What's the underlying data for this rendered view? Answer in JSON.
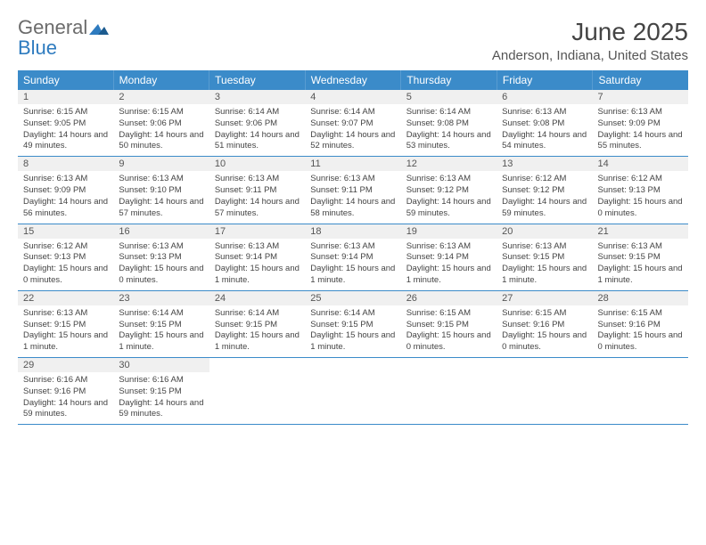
{
  "brand": {
    "part1": "General",
    "part2": "Blue"
  },
  "title": "June 2025",
  "location": "Anderson, Indiana, United States",
  "colors": {
    "header_bg": "#3b8bc9",
    "header_text": "#ffffff",
    "daynum_bg": "#f0f0f0",
    "border": "#3b8bc9",
    "body_text": "#444444",
    "logo_grey": "#6b6b6b",
    "logo_blue": "#2e7bbf"
  },
  "day_names": [
    "Sunday",
    "Monday",
    "Tuesday",
    "Wednesday",
    "Thursday",
    "Friday",
    "Saturday"
  ],
  "weeks": [
    [
      {
        "n": "1",
        "sr": "6:15 AM",
        "ss": "9:05 PM",
        "dl": "14 hours and 49 minutes."
      },
      {
        "n": "2",
        "sr": "6:15 AM",
        "ss": "9:06 PM",
        "dl": "14 hours and 50 minutes."
      },
      {
        "n": "3",
        "sr": "6:14 AM",
        "ss": "9:06 PM",
        "dl": "14 hours and 51 minutes."
      },
      {
        "n": "4",
        "sr": "6:14 AM",
        "ss": "9:07 PM",
        "dl": "14 hours and 52 minutes."
      },
      {
        "n": "5",
        "sr": "6:14 AM",
        "ss": "9:08 PM",
        "dl": "14 hours and 53 minutes."
      },
      {
        "n": "6",
        "sr": "6:13 AM",
        "ss": "9:08 PM",
        "dl": "14 hours and 54 minutes."
      },
      {
        "n": "7",
        "sr": "6:13 AM",
        "ss": "9:09 PM",
        "dl": "14 hours and 55 minutes."
      }
    ],
    [
      {
        "n": "8",
        "sr": "6:13 AM",
        "ss": "9:09 PM",
        "dl": "14 hours and 56 minutes."
      },
      {
        "n": "9",
        "sr": "6:13 AM",
        "ss": "9:10 PM",
        "dl": "14 hours and 57 minutes."
      },
      {
        "n": "10",
        "sr": "6:13 AM",
        "ss": "9:11 PM",
        "dl": "14 hours and 57 minutes."
      },
      {
        "n": "11",
        "sr": "6:13 AM",
        "ss": "9:11 PM",
        "dl": "14 hours and 58 minutes."
      },
      {
        "n": "12",
        "sr": "6:13 AM",
        "ss": "9:12 PM",
        "dl": "14 hours and 59 minutes."
      },
      {
        "n": "13",
        "sr": "6:12 AM",
        "ss": "9:12 PM",
        "dl": "14 hours and 59 minutes."
      },
      {
        "n": "14",
        "sr": "6:12 AM",
        "ss": "9:13 PM",
        "dl": "15 hours and 0 minutes."
      }
    ],
    [
      {
        "n": "15",
        "sr": "6:12 AM",
        "ss": "9:13 PM",
        "dl": "15 hours and 0 minutes."
      },
      {
        "n": "16",
        "sr": "6:13 AM",
        "ss": "9:13 PM",
        "dl": "15 hours and 0 minutes."
      },
      {
        "n": "17",
        "sr": "6:13 AM",
        "ss": "9:14 PM",
        "dl": "15 hours and 1 minute."
      },
      {
        "n": "18",
        "sr": "6:13 AM",
        "ss": "9:14 PM",
        "dl": "15 hours and 1 minute."
      },
      {
        "n": "19",
        "sr": "6:13 AM",
        "ss": "9:14 PM",
        "dl": "15 hours and 1 minute."
      },
      {
        "n": "20",
        "sr": "6:13 AM",
        "ss": "9:15 PM",
        "dl": "15 hours and 1 minute."
      },
      {
        "n": "21",
        "sr": "6:13 AM",
        "ss": "9:15 PM",
        "dl": "15 hours and 1 minute."
      }
    ],
    [
      {
        "n": "22",
        "sr": "6:13 AM",
        "ss": "9:15 PM",
        "dl": "15 hours and 1 minute."
      },
      {
        "n": "23",
        "sr": "6:14 AM",
        "ss": "9:15 PM",
        "dl": "15 hours and 1 minute."
      },
      {
        "n": "24",
        "sr": "6:14 AM",
        "ss": "9:15 PM",
        "dl": "15 hours and 1 minute."
      },
      {
        "n": "25",
        "sr": "6:14 AM",
        "ss": "9:15 PM",
        "dl": "15 hours and 1 minute."
      },
      {
        "n": "26",
        "sr": "6:15 AM",
        "ss": "9:15 PM",
        "dl": "15 hours and 0 minutes."
      },
      {
        "n": "27",
        "sr": "6:15 AM",
        "ss": "9:16 PM",
        "dl": "15 hours and 0 minutes."
      },
      {
        "n": "28",
        "sr": "6:15 AM",
        "ss": "9:16 PM",
        "dl": "15 hours and 0 minutes."
      }
    ],
    [
      {
        "n": "29",
        "sr": "6:16 AM",
        "ss": "9:16 PM",
        "dl": "14 hours and 59 minutes."
      },
      {
        "n": "30",
        "sr": "6:16 AM",
        "ss": "9:15 PM",
        "dl": "14 hours and 59 minutes."
      },
      null,
      null,
      null,
      null,
      null
    ]
  ],
  "labels": {
    "sunrise": "Sunrise:",
    "sunset": "Sunset:",
    "daylight": "Daylight:"
  }
}
